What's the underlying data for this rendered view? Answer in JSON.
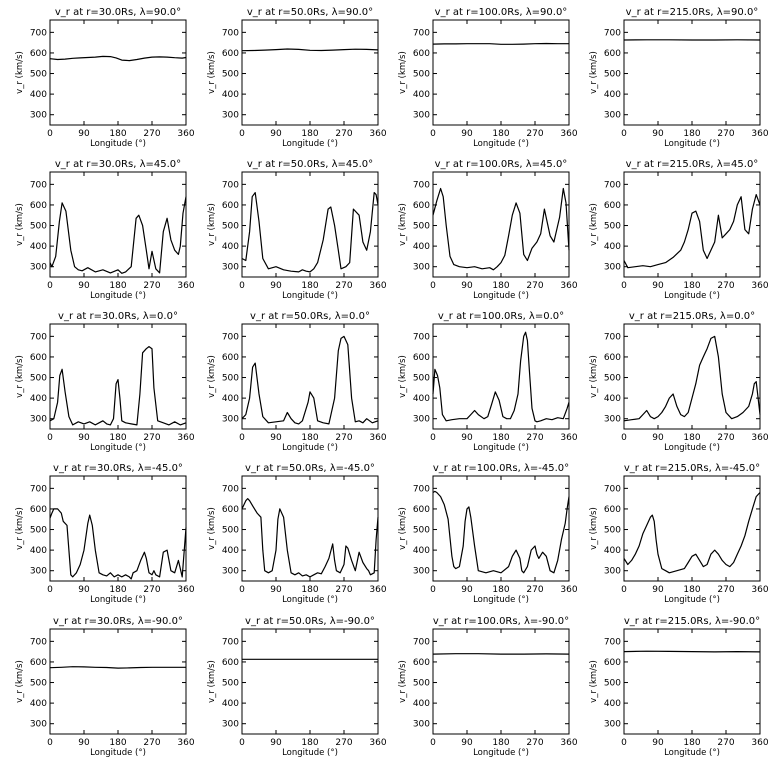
{
  "xlabel": "Longitude (°)",
  "ylabel": "v_r (km/s)",
  "xlim": [
    0,
    360
  ],
  "ylim": [
    250,
    760
  ],
  "xticks": [
    0,
    90,
    180,
    270,
    360
  ],
  "yticks": [
    300,
    400,
    500,
    600,
    700
  ],
  "line_color": "#000000",
  "chart_data": [
    {
      "type": "line",
      "title": "v_r at r=30.0Rs, λ=90.0°",
      "x": [
        0,
        20,
        40,
        60,
        80,
        100,
        120,
        140,
        160,
        175,
        190,
        210,
        230,
        250,
        270,
        290,
        310,
        330,
        350,
        360
      ],
      "values": [
        572,
        568,
        570,
        574,
        576,
        578,
        580,
        583,
        582,
        576,
        565,
        563,
        568,
        575,
        580,
        581,
        580,
        577,
        575,
        578
      ]
    },
    {
      "type": "line",
      "title": "v_r at r=50.0Rs, λ=90.0°",
      "x": [
        0,
        30,
        60,
        90,
        120,
        150,
        180,
        210,
        240,
        270,
        300,
        330,
        360
      ],
      "values": [
        611,
        612,
        614,
        616,
        619,
        617,
        613,
        612,
        614,
        616,
        618,
        617,
        615
      ]
    },
    {
      "type": "line",
      "title": "v_r at r=100.0Rs, λ=90.0°",
      "x": [
        0,
        30,
        60,
        90,
        120,
        150,
        180,
        210,
        240,
        270,
        300,
        330,
        360
      ],
      "values": [
        643,
        644,
        644,
        645,
        645,
        645,
        642,
        642,
        643,
        645,
        646,
        645,
        645
      ]
    },
    {
      "type": "line",
      "title": "v_r at r=215.0Rs, λ=90.0°",
      "x": [
        0,
        60,
        120,
        180,
        240,
        300,
        360
      ],
      "values": [
        663,
        664,
        664,
        663,
        663,
        664,
        663
      ]
    },
    {
      "type": "line",
      "title": "v_r at r=30.0Rs, λ=45.0°",
      "x": [
        0,
        5,
        15,
        25,
        32,
        42,
        55,
        65,
        75,
        85,
        100,
        120,
        140,
        160,
        180,
        190,
        200,
        215,
        228,
        235,
        245,
        255,
        262,
        270,
        280,
        290,
        300,
        310,
        320,
        330,
        340,
        345,
        352,
        360
      ],
      "values": [
        320,
        300,
        350,
        520,
        610,
        570,
        380,
        300,
        285,
        280,
        295,
        275,
        285,
        270,
        285,
        268,
        275,
        300,
        535,
        550,
        500,
        380,
        290,
        375,
        290,
        270,
        470,
        535,
        430,
        380,
        360,
        400,
        560,
        640
      ]
    },
    {
      "type": "line",
      "title": "v_r at r=50.0Rs, λ=45.0°",
      "x": [
        0,
        10,
        20,
        27,
        35,
        45,
        55,
        70,
        90,
        110,
        130,
        150,
        160,
        170,
        180,
        190,
        200,
        215,
        228,
        235,
        245,
        255,
        262,
        275,
        285,
        295,
        310,
        320,
        330,
        340,
        350,
        355,
        360
      ],
      "values": [
        340,
        330,
        470,
        640,
        660,
        520,
        340,
        290,
        300,
        285,
        278,
        275,
        285,
        278,
        275,
        290,
        320,
        430,
        580,
        590,
        500,
        380,
        290,
        300,
        320,
        580,
        550,
        420,
        380,
        470,
        660,
        650,
        600
      ]
    },
    {
      "type": "line",
      "title": "v_r at r=100.0Rs, λ=45.0°",
      "x": [
        0,
        10,
        20,
        27,
        35,
        45,
        55,
        70,
        90,
        110,
        130,
        150,
        160,
        170,
        180,
        190,
        200,
        210,
        220,
        230,
        240,
        250,
        262,
        275,
        285,
        295,
        310,
        320,
        335,
        345,
        352,
        360
      ],
      "values": [
        550,
        620,
        680,
        640,
        500,
        350,
        310,
        300,
        295,
        300,
        290,
        295,
        285,
        300,
        320,
        355,
        450,
        550,
        610,
        560,
        360,
        330,
        390,
        420,
        460,
        580,
        450,
        420,
        540,
        680,
        610,
        380
      ]
    },
    {
      "type": "line",
      "title": "v_r at r=215.0Rs, λ=45.0°",
      "x": [
        0,
        10,
        30,
        50,
        70,
        90,
        110,
        130,
        150,
        160,
        170,
        180,
        190,
        200,
        210,
        220,
        230,
        240,
        250,
        260,
        270,
        280,
        290,
        300,
        310,
        320,
        330,
        340,
        350,
        360
      ],
      "values": [
        330,
        295,
        300,
        305,
        300,
        310,
        320,
        345,
        380,
        420,
        480,
        560,
        570,
        520,
        380,
        340,
        380,
        420,
        550,
        440,
        460,
        480,
        520,
        600,
        640,
        480,
        460,
        580,
        650,
        600
      ]
    },
    {
      "type": "line",
      "title": "v_r at r=30.0Rs, λ=0.0°",
      "x": [
        0,
        10,
        20,
        26,
        32,
        40,
        50,
        60,
        75,
        90,
        105,
        120,
        130,
        140,
        150,
        160,
        168,
        175,
        180,
        185,
        190,
        200,
        215,
        230,
        238,
        245,
        255,
        262,
        270,
        275,
        285,
        300,
        315,
        330,
        345,
        360
      ],
      "values": [
        290,
        300,
        380,
        510,
        540,
        430,
        310,
        270,
        285,
        275,
        285,
        270,
        280,
        290,
        275,
        270,
        300,
        470,
        490,
        400,
        290,
        280,
        275,
        270,
        420,
        620,
        640,
        650,
        640,
        450,
        290,
        280,
        270,
        285,
        270,
        280
      ]
    },
    {
      "type": "line",
      "title": "v_r at r=50.0Rs, λ=0.0°",
      "x": [
        0,
        10,
        20,
        28,
        35,
        45,
        55,
        70,
        90,
        110,
        120,
        130,
        140,
        150,
        160,
        175,
        180,
        190,
        200,
        215,
        230,
        245,
        255,
        262,
        270,
        280,
        290,
        300,
        310,
        320,
        330,
        345,
        360
      ],
      "values": [
        300,
        320,
        400,
        550,
        570,
        420,
        310,
        280,
        285,
        290,
        330,
        300,
        280,
        275,
        290,
        380,
        430,
        400,
        290,
        280,
        275,
        400,
        630,
        690,
        700,
        660,
        400,
        285,
        290,
        280,
        300,
        280,
        290
      ]
    },
    {
      "type": "line",
      "title": "v_r at r=100.0Rs, λ=0.0°",
      "x": [
        0,
        5,
        12,
        18,
        25,
        35,
        50,
        70,
        90,
        100,
        110,
        120,
        135,
        145,
        155,
        165,
        175,
        185,
        195,
        205,
        215,
        225,
        232,
        240,
        245,
        250,
        255,
        262,
        270,
        275,
        285,
        300,
        315,
        330,
        345,
        355,
        360
      ],
      "values": [
        420,
        540,
        510,
        450,
        320,
        290,
        295,
        300,
        300,
        320,
        340,
        320,
        300,
        310,
        370,
        430,
        390,
        310,
        300,
        300,
        340,
        420,
        580,
        700,
        720,
        680,
        540,
        350,
        290,
        285,
        290,
        300,
        295,
        305,
        300,
        350,
        380
      ]
    },
    {
      "type": "line",
      "title": "v_r at r=215.0Rs, λ=0.0°",
      "x": [
        0,
        20,
        40,
        50,
        60,
        70,
        80,
        90,
        100,
        110,
        120,
        130,
        140,
        150,
        160,
        170,
        180,
        190,
        200,
        205,
        210,
        215,
        220,
        230,
        240,
        250,
        260,
        270,
        285,
        300,
        315,
        330,
        340,
        345,
        350,
        355,
        360
      ],
      "values": [
        290,
        295,
        300,
        320,
        340,
        310,
        300,
        310,
        330,
        360,
        400,
        420,
        360,
        320,
        310,
        330,
        400,
        470,
        560,
        580,
        600,
        620,
        640,
        690,
        700,
        600,
        420,
        330,
        300,
        310,
        330,
        360,
        420,
        470,
        480,
        400,
        320
      ]
    },
    {
      "type": "line",
      "title": "v_r at r=30.0Rs, λ=-45.0°",
      "x": [
        0,
        5,
        10,
        20,
        30,
        35,
        45,
        55,
        60,
        70,
        80,
        90,
        100,
        105,
        112,
        120,
        130,
        140,
        150,
        160,
        170,
        180,
        190,
        200,
        210,
        215,
        220,
        230,
        240,
        250,
        255,
        262,
        270,
        275,
        280,
        290,
        300,
        310,
        315,
        320,
        330,
        340,
        345,
        350,
        360
      ],
      "values": [
        555,
        580,
        600,
        600,
        580,
        540,
        520,
        280,
        270,
        290,
        330,
        400,
        530,
        570,
        520,
        400,
        290,
        280,
        275,
        290,
        270,
        280,
        270,
        280,
        270,
        260,
        290,
        300,
        350,
        390,
        360,
        290,
        280,
        300,
        280,
        270,
        390,
        400,
        350,
        300,
        290,
        350,
        310,
        270,
        510
      ]
    },
    {
      "type": "line",
      "title": "v_r at r=50.0Rs, λ=-45.0°",
      "x": [
        0,
        10,
        15,
        20,
        30,
        40,
        50,
        55,
        60,
        70,
        80,
        90,
        95,
        100,
        110,
        120,
        130,
        140,
        150,
        160,
        170,
        180,
        190,
        200,
        210,
        220,
        230,
        240,
        245,
        250,
        260,
        270,
        275,
        280,
        290,
        300,
        310,
        320,
        330,
        335,
        340,
        350,
        355,
        360
      ],
      "values": [
        600,
        640,
        650,
        640,
        610,
        580,
        560,
        400,
        300,
        290,
        300,
        400,
        550,
        600,
        560,
        400,
        290,
        280,
        290,
        275,
        280,
        270,
        280,
        290,
        285,
        320,
        360,
        430,
        350,
        300,
        290,
        330,
        420,
        410,
        350,
        300,
        390,
        340,
        310,
        300,
        280,
        290,
        450,
        560
      ]
    },
    {
      "type": "line",
      "title": "v_r at r=100.0Rs, λ=-45.0°",
      "x": [
        0,
        5,
        10,
        20,
        30,
        40,
        45,
        50,
        55,
        60,
        70,
        80,
        85,
        90,
        95,
        100,
        110,
        120,
        140,
        160,
        180,
        200,
        210,
        220,
        230,
        235,
        240,
        250,
        260,
        270,
        275,
        280,
        290,
        300,
        310,
        320,
        330,
        340,
        350,
        355,
        360
      ],
      "values": [
        680,
        685,
        680,
        660,
        620,
        550,
        460,
        370,
        320,
        310,
        320,
        420,
        540,
        600,
        610,
        560,
        420,
        300,
        290,
        300,
        290,
        320,
        370,
        400,
        360,
        300,
        290,
        320,
        400,
        420,
        380,
        360,
        390,
        370,
        300,
        290,
        350,
        450,
        530,
        600,
        660
      ]
    },
    {
      "type": "line",
      "title": "v_r at r=215.0Rs, λ=-45.0°",
      "x": [
        0,
        10,
        20,
        30,
        40,
        50,
        60,
        70,
        75,
        80,
        85,
        90,
        100,
        110,
        120,
        140,
        160,
        170,
        180,
        190,
        200,
        210,
        220,
        230,
        240,
        250,
        260,
        270,
        280,
        290,
        300,
        310,
        320,
        330,
        340,
        350,
        360
      ],
      "values": [
        360,
        330,
        350,
        380,
        420,
        480,
        520,
        560,
        570,
        540,
        450,
        380,
        310,
        300,
        290,
        300,
        310,
        340,
        370,
        380,
        350,
        320,
        330,
        380,
        400,
        380,
        350,
        330,
        320,
        340,
        380,
        420,
        470,
        540,
        600,
        660,
        680
      ]
    },
    {
      "type": "line",
      "title": "v_r at r=30.0Rs, λ=-90.0°",
      "x": [
        0,
        30,
        60,
        90,
        120,
        150,
        180,
        210,
        240,
        270,
        300,
        330,
        360
      ],
      "values": [
        572,
        574,
        577,
        576,
        574,
        573,
        570,
        571,
        573,
        574,
        574,
        574,
        574
      ]
    },
    {
      "type": "line",
      "title": "v_r at r=50.0Rs, λ=-90.0°",
      "x": [
        0,
        90,
        180,
        270,
        360
      ],
      "values": [
        613,
        613,
        613,
        613,
        613
      ]
    },
    {
      "type": "line",
      "title": "v_r at r=100.0Rs, λ=-90.0°",
      "x": [
        0,
        60,
        120,
        180,
        240,
        300,
        360
      ],
      "values": [
        638,
        640,
        640,
        638,
        638,
        639,
        638
      ]
    },
    {
      "type": "line",
      "title": "v_r at r=215.0Rs, λ=-90.0°",
      "x": [
        0,
        60,
        120,
        180,
        240,
        300,
        360
      ],
      "values": [
        650,
        652,
        651,
        650,
        649,
        650,
        649
      ]
    }
  ]
}
